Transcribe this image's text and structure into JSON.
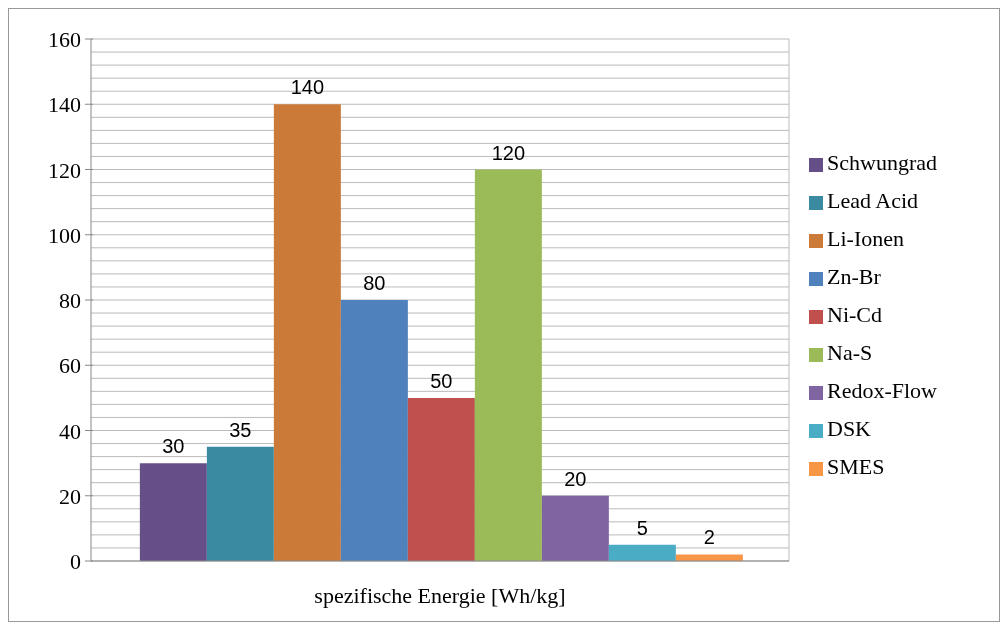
{
  "chart_data": {
    "type": "bar",
    "xlabel": "spezifische Energie [Wh/kg]",
    "categories": [
      null
    ],
    "series": [
      {
        "name": "Schwungrad",
        "color": "#664f88",
        "values": [
          30
        ]
      },
      {
        "name": "Lead Acid",
        "color": "#3a8ba2",
        "values": [
          35
        ]
      },
      {
        "name": "Li-Ionen",
        "color": "#cc7a38",
        "values": [
          140
        ]
      },
      {
        "name": "Zn-Br",
        "color": "#4f81bd",
        "values": [
          80
        ]
      },
      {
        "name": "Ni-Cd",
        "color": "#c0504d",
        "values": [
          50
        ]
      },
      {
        "name": "Na-S",
        "color": "#9bbb59",
        "values": [
          120
        ]
      },
      {
        "name": "Redox-Flow",
        "color": "#8064a2",
        "values": [
          20
        ]
      },
      {
        "name": "DSK",
        "color": "#4bacc6",
        "values": [
          5
        ]
      },
      {
        "name": "SMES",
        "color": "#f79646",
        "values": [
          2
        ]
      }
    ],
    "ylim": [
      0,
      160
    ],
    "yticks": [
      0,
      {
        "value": 4,
        "label": null
      },
      {
        "value": 8,
        "label": null
      },
      {
        "value": 12,
        "label": null
      },
      {
        "value": 16,
        "label": null
      },
      20,
      {
        "value": 24,
        "label": null
      },
      {
        "value": 28,
        "label": null
      },
      {
        "value": 32,
        "label": null
      },
      {
        "value": 36,
        "label": null
      },
      40,
      {
        "value": 44,
        "label": null
      },
      {
        "value": 48,
        "label": null
      },
      {
        "value": 52,
        "label": null
      },
      {
        "value": 56,
        "label": null
      },
      60,
      {
        "value": 64,
        "label": null
      },
      {
        "value": 68,
        "label": null
      },
      {
        "value": 72,
        "label": null
      },
      {
        "value": 76,
        "label": null
      },
      80,
      {
        "value": 84,
        "label": null
      },
      {
        "value": 88,
        "label": null
      },
      {
        "value": 92,
        "label": null
      },
      {
        "value": 96,
        "label": null
      },
      100,
      {
        "value": 104,
        "label": null
      },
      {
        "value": 108,
        "label": null
      },
      {
        "value": 112,
        "label": null
      },
      {
        "value": 116,
        "label": null
      },
      120,
      {
        "value": 124,
        "label": null
      },
      {
        "value": 128,
        "label": null
      },
      {
        "value": 132,
        "label": null
      },
      {
        "value": 136,
        "label": null
      },
      140,
      {
        "value": 144,
        "label": null
      },
      {
        "value": 148,
        "label": null
      },
      {
        "value": 152,
        "label": null
      },
      {
        "value": 156,
        "label": null
      },
      160
    ],
    "grid": "y",
    "legend": "right",
    "data_labels": true
  }
}
